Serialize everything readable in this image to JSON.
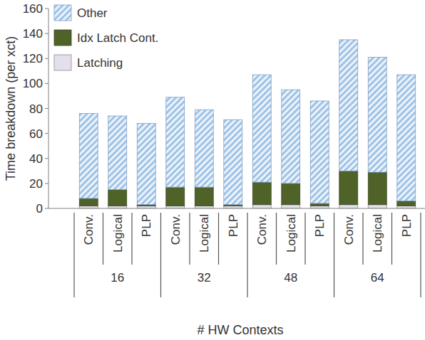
{
  "chart_data": {
    "type": "bar",
    "stacked": true,
    "y_label": "Time breakdown (per xct)",
    "x_label": "# HW Contexts",
    "categories": [
      "Conv.",
      "Logical",
      "PLP",
      "Conv.",
      "Logical",
      "PLP",
      "Conv.",
      "Logical",
      "PLP",
      "Conv.",
      "Logical",
      "PLP"
    ],
    "groups": [
      "16",
      "32",
      "48",
      "64"
    ],
    "series": [
      {
        "name": "Latching",
        "color": "#e4dfec",
        "values": [
          2,
          2,
          2,
          2,
          2,
          2,
          3,
          3,
          2,
          3,
          3,
          2
        ]
      },
      {
        "name": "Idx Latch Cont.",
        "color": "#4f6228",
        "values": [
          6,
          13,
          1,
          15,
          15,
          1,
          18,
          17,
          2,
          27,
          26,
          4
        ]
      },
      {
        "name": "Other",
        "color": "#9dc3e6",
        "values": [
          68,
          59,
          65,
          72,
          62,
          68,
          86,
          75,
          82,
          105,
          92,
          101
        ]
      }
    ],
    "ylim": [
      0,
      160
    ],
    "yticks": [
      0,
      20,
      40,
      60,
      80,
      100,
      120,
      140,
      160
    ],
    "grid": false,
    "legend": "top-left"
  }
}
